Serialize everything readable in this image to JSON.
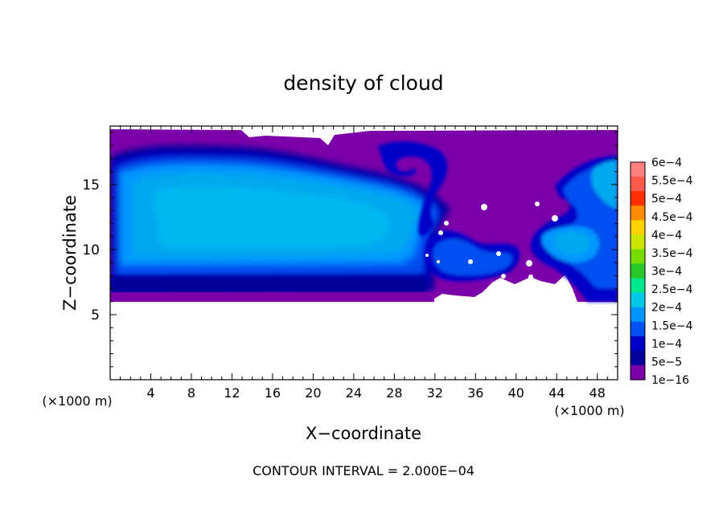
{
  "chart_data": {
    "type": "heatmap",
    "title": "density of cloud",
    "xlabel": "X−coordinate",
    "ylabel": "Z−coordinate",
    "x_unit_left": "(×1000 m)",
    "x_unit_right": "(×1000 m)",
    "xlim": [
      0,
      50
    ],
    "ylim": [
      0,
      19.5
    ],
    "x_ticks": [
      4,
      8,
      12,
      16,
      20,
      24,
      28,
      32,
      36,
      40,
      44,
      48
    ],
    "y_ticks": [
      5,
      10,
      15
    ],
    "footer": "CONTOUR INTERVAL = 2.000E−04",
    "colorbar": {
      "labels": [
        "6e−4",
        "5.5e−4",
        "5e−4",
        "4.5e−4",
        "4e−4",
        "3.5e−4",
        "3e−4",
        "2.5e−4",
        "2e−4",
        "1.5e−4",
        "1e−4",
        "5e−5",
        "1e−16"
      ],
      "colors": [
        "#ff7f7f",
        "#ff5a4a",
        "#ff3000",
        "#ff8c00",
        "#ffd200",
        "#c8e600",
        "#78dc00",
        "#28c828",
        "#00e68c",
        "#00c8e6",
        "#0096ff",
        "#0050f0",
        "#0000c8",
        "#00009a",
        "#7c00aa"
      ]
    }
  }
}
